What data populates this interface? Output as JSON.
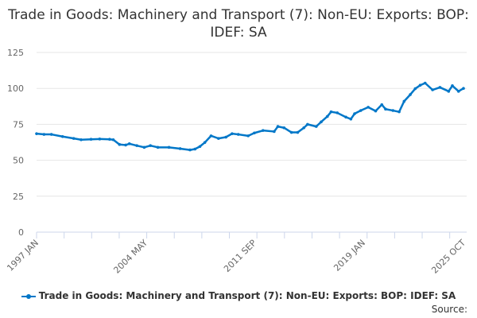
{
  "chart_data": {
    "type": "line",
    "title": "Trade in Goods: Machinery and Transport (7): Non-EU: Exports: BOP: IDEF: SA",
    "xlabel": "",
    "ylabel": "",
    "ylim": [
      0,
      125
    ],
    "yticks": [
      0,
      25,
      50,
      75,
      100,
      125
    ],
    "xticks": [
      "1997 JAN",
      "2004 MAY",
      "2011 SEP",
      "2019 JAN",
      "2025 OCT"
    ],
    "xrange": [
      "1997 JAN",
      "2025 OCT"
    ],
    "grid": true,
    "legend_position": "bottom",
    "color": "#0077c8",
    "series": [
      {
        "name": "Trade in Goods: Machinery and Transport (7): Non-EU: Exports: BOP: IDEF: SA",
        "points": [
          [
            "1997 JAN",
            68.5
          ],
          [
            "1997 JUL",
            68
          ],
          [
            "1998 JAN",
            68
          ],
          [
            "1998 OCT",
            66.5
          ],
          [
            "1999 JUL",
            65.2
          ],
          [
            "2000 JAN",
            64.3
          ],
          [
            "2000 SEP",
            64.6
          ],
          [
            "2001 APR",
            64.8
          ],
          [
            "2001 DEC",
            64.6
          ],
          [
            "2002 MAR",
            64.3
          ],
          [
            "2002 AUG",
            61
          ],
          [
            "2003 JAN",
            60.6
          ],
          [
            "2003 APR",
            61.5
          ],
          [
            "2003 OCT",
            60.2
          ],
          [
            "2004 APR",
            59
          ],
          [
            "2004 SEP",
            60.2
          ],
          [
            "2005 MAR",
            59
          ],
          [
            "2005 DEC",
            59
          ],
          [
            "2006 SEP",
            58.1
          ],
          [
            "2007 MAY",
            57.2
          ],
          [
            "2007 SEP",
            57.8
          ],
          [
            "2008 JAN",
            59.6
          ],
          [
            "2008 MAY",
            62.4
          ],
          [
            "2008 OCT",
            67
          ],
          [
            "2009 APR",
            65.2
          ],
          [
            "2009 OCT",
            66.1
          ],
          [
            "2010 MAR",
            68.5
          ],
          [
            "2010 AUG",
            68
          ],
          [
            "2011 APR",
            67
          ],
          [
            "2011 SEP",
            69
          ],
          [
            "2012 APR",
            70.7
          ],
          [
            "2013 JAN",
            70
          ],
          [
            "2013 APR",
            73.5
          ],
          [
            "2013 SEP",
            72.6
          ],
          [
            "2014 MAR",
            69.4
          ],
          [
            "2014 AUG",
            69.4
          ],
          [
            "2015 JAN",
            72.6
          ],
          [
            "2015 APR",
            75
          ],
          [
            "2015 NOV",
            73.5
          ],
          [
            "2016 MAR",
            76.7
          ],
          [
            "2016 AUG",
            80.5
          ],
          [
            "2016 NOV",
            83.7
          ],
          [
            "2017 APR",
            83
          ],
          [
            "2017 NOV",
            80
          ],
          [
            "2018 MAR",
            78.7
          ],
          [
            "2018 JUN",
            82.4
          ],
          [
            "2018 NOV",
            84.6
          ],
          [
            "2019 MAY",
            86.9
          ],
          [
            "2019 NOV",
            84.3
          ],
          [
            "2020 APR",
            88.7
          ],
          [
            "2020 JUL",
            85.6
          ],
          [
            "2021 JAN",
            84.6
          ],
          [
            "2021 JUN",
            83.7
          ],
          [
            "2021 OCT",
            91
          ],
          [
            "2022 MAR",
            95.7
          ],
          [
            "2022 JUL",
            99.8
          ],
          [
            "2022 NOV",
            102.2
          ],
          [
            "2023 MAR",
            103.7
          ],
          [
            "2023 SEP",
            99
          ],
          [
            "2024 MAR",
            100.7
          ],
          [
            "2024 OCT",
            98
          ],
          [
            "2025 JAN",
            101.9
          ],
          [
            "2025 JUN",
            98
          ],
          [
            "2025 OCT",
            100
          ]
        ]
      }
    ]
  },
  "source_label": "Source:"
}
